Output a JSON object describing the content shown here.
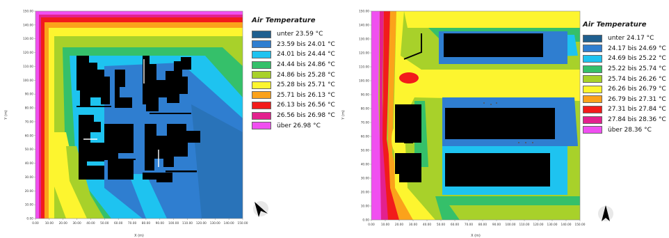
{
  "left_panel": {
    "legend_title": "Air Temperature",
    "x_axis_label": "X (m)",
    "y_axis_label": "Y (m)",
    "x_ticks": [
      "0.00",
      "10.00",
      "20.00",
      "30.00",
      "40.00",
      "50.00",
      "60.00",
      "70.00",
      "80.00",
      "90.00",
      "100.00",
      "110.00",
      "120.00",
      "130.00",
      "140.00",
      "150.00"
    ],
    "y_ticks": [
      "0.00",
      "10.00",
      "20.00",
      "30.00",
      "40.00",
      "50.00",
      "60.00",
      "70.00",
      "80.00",
      "90.00",
      "100.00",
      "110.00",
      "120.00",
      "130.00",
      "140.00",
      "150.00"
    ],
    "legend": [
      {
        "label": "unter 23.59 °C",
        "color": "#1f5f8f"
      },
      {
        "label": "23.59 bis 24.01 °C",
        "color": "#2f7ed0"
      },
      {
        "label": "24.01 bis 24.44 °C",
        "color": "#1ec3f0"
      },
      {
        "label": "24.44 bis 24.86 °C",
        "color": "#35c06a"
      },
      {
        "label": "24.86 bis 25.28 °C",
        "color": "#a8d12a"
      },
      {
        "label": "25.28 bis 25.71 °C",
        "color": "#fdf52f"
      },
      {
        "label": "25.71 bis 26.13 °C",
        "color": "#fba21b"
      },
      {
        "label": "26.13 bis 26.56 °C",
        "color": "#f21b1b"
      },
      {
        "label": "26.56 bis 26.98 °C",
        "color": "#e3218e"
      },
      {
        "label": "über 26.98 °C",
        "color": "#f04ff0"
      }
    ]
  },
  "right_panel": {
    "legend_title": "Air Temperature",
    "x_axis_label": "X (m)",
    "y_axis_label": "Y (m)",
    "x_ticks": [
      "0.00",
      "10.00",
      "20.00",
      "30.00",
      "40.00",
      "50.00",
      "60.00",
      "70.00",
      "80.00",
      "90.00",
      "100.00",
      "110.00",
      "120.00",
      "130.00",
      "140.00",
      "150.00"
    ],
    "y_ticks": [
      "0.00",
      "10.00",
      "20.00",
      "30.00",
      "40.00",
      "50.00",
      "60.00",
      "70.00",
      "80.00",
      "90.00",
      "100.00",
      "110.00",
      "120.00",
      "130.00",
      "140.00",
      "150.00"
    ],
    "legend": [
      {
        "label": "unter 24.17 °C",
        "color": "#1f5f8f"
      },
      {
        "label": "24.17 bis 24.69 °C",
        "color": "#2f7ed0"
      },
      {
        "label": "24.69 bis 25.22 °C",
        "color": "#1ec3f0"
      },
      {
        "label": "25.22 bis 25.74 °C",
        "color": "#35c06a"
      },
      {
        "label": "25.74 bis 26.26 °C",
        "color": "#a8d12a"
      },
      {
        "label": "26.26 bis 26.79 °C",
        "color": "#fdf52f"
      },
      {
        "label": "26.79 bis 27.31 °C",
        "color": "#fba21b"
      },
      {
        "label": "27.31 bis 27.84 °C",
        "color": "#f21b1b"
      },
      {
        "label": "27.84 bis 28.36 °C",
        "color": "#e3218e"
      },
      {
        "label": "über 28.36 °C",
        "color": "#f04ff0"
      }
    ]
  }
}
